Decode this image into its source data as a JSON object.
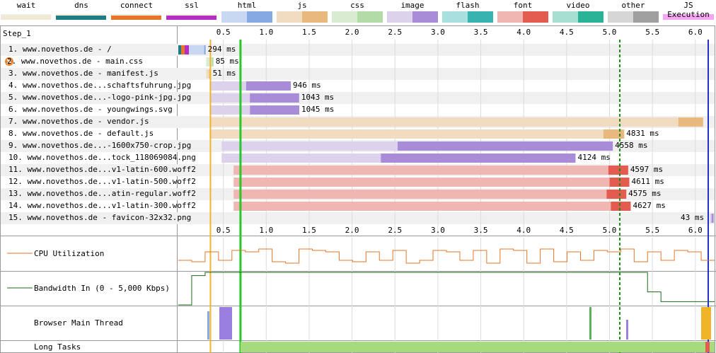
{
  "legend": [
    {
      "label": "wait",
      "color1": "#efe9d6",
      "color2": "#efe9d6",
      "mode": "line"
    },
    {
      "label": "dns",
      "color1": "#1f7c83",
      "color2": "#1f7c83",
      "mode": "line"
    },
    {
      "label": "connect",
      "color1": "#e5762a",
      "color2": "#e5762a",
      "mode": "line"
    },
    {
      "label": "ssl",
      "color1": "#b52dc3",
      "color2": "#b52dc3",
      "mode": "line"
    },
    {
      "label": "html",
      "color1": "#c9d8f2",
      "color2": "#86a8e3",
      "mode": "split"
    },
    {
      "label": "js",
      "color1": "#f1dcc2",
      "color2": "#e9b87d",
      "mode": "split"
    },
    {
      "label": "css",
      "color1": "#d8ecd2",
      "color2": "#b3dba7",
      "mode": "split"
    },
    {
      "label": "image",
      "color1": "#dcd2ec",
      "color2": "#a88cd8",
      "mode": "split"
    },
    {
      "label": "flash",
      "color1": "#a8e0df",
      "color2": "#38b3b0",
      "mode": "split"
    },
    {
      "label": "font",
      "color1": "#f0b6b1",
      "color2": "#e45b50",
      "mode": "split"
    },
    {
      "label": "video",
      "color1": "#a6e0d0",
      "color2": "#2bb398",
      "mode": "split"
    },
    {
      "label": "other",
      "color1": "#d6d6d6",
      "color2": "#9f9f9f",
      "mode": "split"
    },
    {
      "label": "JS Execution",
      "color1": "#f4a6f3",
      "color2": "#f4a6f3",
      "mode": "solid"
    }
  ],
  "step_label": "Step_1",
  "ticks": [
    "0.5",
    "1.0",
    "1.5",
    "2.0",
    "2.5",
    "3.0",
    "3.5",
    "4.0",
    "4.5",
    "5.0",
    "5.5",
    "6.0"
  ],
  "requests": [
    {
      "label": "1. www.novethos.de - /",
      "ms": "294 ms",
      "type": "html",
      "error": false
    },
    {
      "label": "2. www.novethos.de - main.css",
      "ms": "85 ms",
      "type": "css",
      "error": true
    },
    {
      "label": "3. www.novethos.de - manifest.js",
      "ms": "51 ms",
      "type": "js",
      "error": false
    },
    {
      "label": "4. www.novethos.de...schaftsfuhrung.jpg",
      "ms": "946 ms",
      "type": "image",
      "error": false
    },
    {
      "label": "5. www.novethos.de...-logo-pink-jpg.jpg",
      "ms": "1043 ms",
      "type": "image",
      "error": false
    },
    {
      "label": "6. www.novethos.de - youngwings.svg",
      "ms": "1045 ms",
      "type": "image",
      "error": false
    },
    {
      "label": "7. www.novethos.de - vendor.js",
      "ms": "",
      "type": "js",
      "error": false
    },
    {
      "label": "8. www.novethos.de - default.js",
      "ms": "4831 ms",
      "type": "js",
      "error": false
    },
    {
      "label": "9. www.novethos.de...-1600x750-crop.jpg",
      "ms": "4558 ms",
      "type": "image",
      "error": false
    },
    {
      "label": "10. www.novethos.de...tock_118069084.png",
      "ms": "4124 ms",
      "type": "image",
      "error": false
    },
    {
      "label": "11. www.novethos.de...v1-latin-600.woff2",
      "ms": "4597 ms",
      "type": "font",
      "error": false
    },
    {
      "label": "12. www.novethos.de...v1-latin-500.woff2",
      "ms": "4611 ms",
      "type": "font",
      "error": false
    },
    {
      "label": "13. www.novethos.de...atin-regular.woff2",
      "ms": "4575 ms",
      "type": "font",
      "error": false
    },
    {
      "label": "14. www.novethos.de...v1-latin-300.woff2",
      "ms": "4627 ms",
      "type": "font",
      "error": false
    },
    {
      "label": "15. www.novethos.de - favicon-32x32.png",
      "ms": "43 ms",
      "type": "image",
      "error": false
    }
  ],
  "panels": {
    "cpu": "CPU Utilization",
    "bandwidth": "Bandwidth In (0 - 5,000 Kbps)",
    "main_thread": "Browser Main Thread",
    "long_tasks": "Long Tasks"
  },
  "chart_data": {
    "type": "waterfall",
    "x_unit": "s",
    "xlim": [
      0,
      6.2
    ],
    "markers": {
      "start_render": 0.35,
      "dom_interactive": 0.7,
      "dom_content_loaded": 5.12,
      "on_load": 6.15
    },
    "timings": [
      {
        "start": 0.0,
        "dur": 0.294
      },
      {
        "start": 0.3,
        "dur": 0.085
      },
      {
        "start": 0.3,
        "dur": 0.051
      },
      {
        "start": 0.34,
        "dur": 0.946
      },
      {
        "start": 0.34,
        "dur": 1.043
      },
      {
        "start": 0.34,
        "dur": 1.045
      },
      {
        "start": 0.34,
        "dur": 5.75
      },
      {
        "start": 0.34,
        "dur": 4.831
      },
      {
        "start": 0.48,
        "dur": 4.558
      },
      {
        "start": 0.48,
        "dur": 4.124
      },
      {
        "start": 0.62,
        "dur": 4.597
      },
      {
        "start": 0.62,
        "dur": 4.611
      },
      {
        "start": 0.62,
        "dur": 4.575
      },
      {
        "start": 0.62,
        "dur": 4.627
      },
      {
        "start": 6.17,
        "dur": 0.043
      }
    ],
    "cpu": [
      0,
      0,
      1,
      0,
      1,
      1,
      1,
      0,
      0,
      1,
      1,
      1,
      0,
      0,
      1,
      0,
      1,
      0,
      0,
      1,
      1,
      0,
      1,
      0,
      1,
      1,
      0,
      1,
      0,
      1,
      0,
      1,
      1,
      1,
      0,
      1,
      0,
      1,
      1,
      0
    ],
    "bandwidth": [
      0,
      0.9,
      1,
      1,
      1,
      1,
      1,
      1,
      1,
      1,
      1,
      1,
      1,
      1,
      1,
      1,
      1,
      1,
      1,
      1,
      1,
      1,
      1,
      1,
      1,
      1,
      1,
      1,
      1,
      1,
      1,
      1,
      1,
      1,
      1,
      0.4,
      0.1,
      0.1,
      0.1,
      0.1
    ]
  }
}
